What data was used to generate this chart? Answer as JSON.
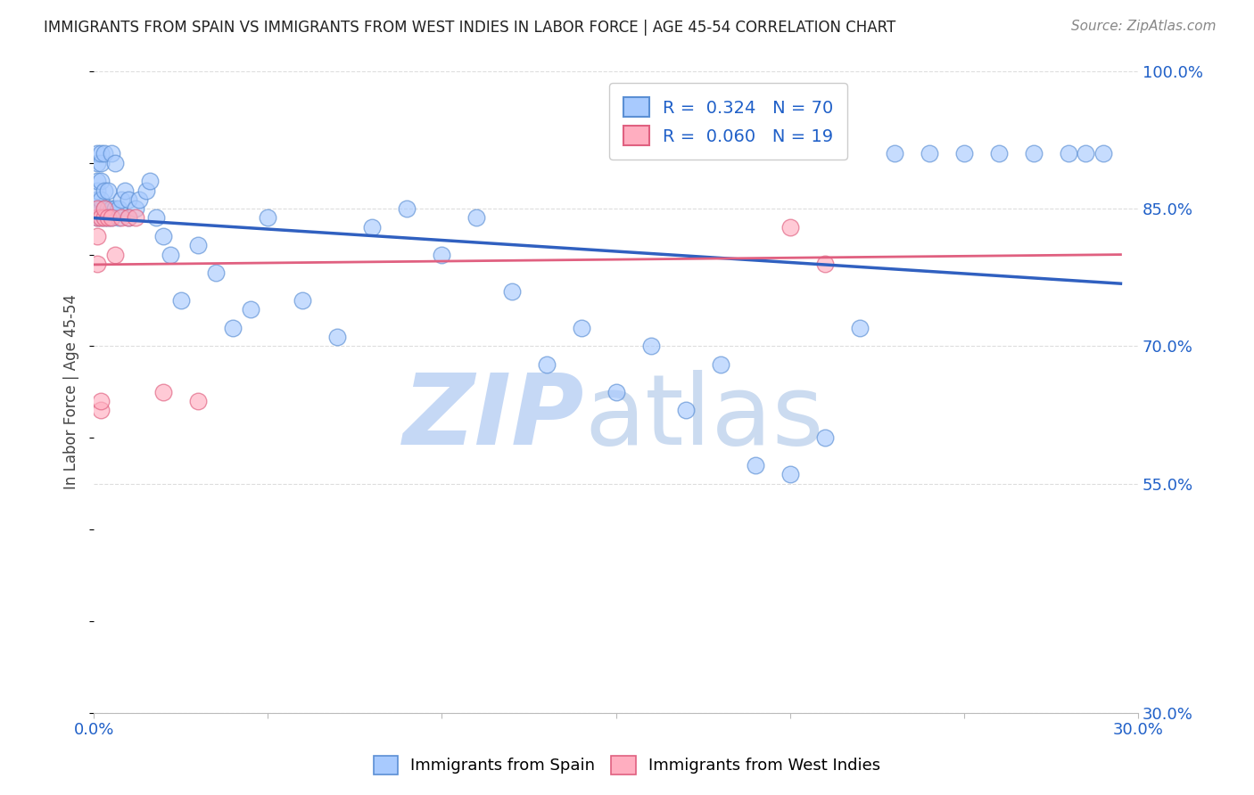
{
  "title": "IMMIGRANTS FROM SPAIN VS IMMIGRANTS FROM WEST INDIES IN LABOR FORCE | AGE 45-54 CORRELATION CHART",
  "source": "Source: ZipAtlas.com",
  "ylabel": "In Labor Force | Age 45-54",
  "xlim": [
    0.0,
    0.3
  ],
  "ylim": [
    0.3,
    1.0
  ],
  "xtick_labels": [
    "0.0%",
    "",
    "",
    "",
    "",
    "",
    "30.0%"
  ],
  "ytick_labels_right": [
    "100.0%",
    "85.0%",
    "70.0%",
    "55.0%",
    "30.0%"
  ],
  "ytick_positions_right": [
    1.0,
    0.85,
    0.7,
    0.55,
    0.3
  ],
  "r_spain": 0.324,
  "n_spain": 70,
  "r_westindies": 0.06,
  "n_westindies": 19,
  "blue_fill": "#A8CAFE",
  "pink_fill": "#FFAEC0",
  "blue_edge": "#5B8FD4",
  "pink_edge": "#E06080",
  "blue_line_color": "#3060C0",
  "pink_line_color": "#E06080",
  "legend_color": "#2060C8",
  "background_color": "#FFFFFF",
  "grid_color": "#DDDDDD",
  "title_color": "#222222",
  "source_color": "#888888",
  "axis_color": "#2060C8",
  "ylabel_color": "#444444",
  "spain_x": [
    0.001,
    0.001,
    0.001,
    0.001,
    0.001,
    0.001,
    0.001,
    0.001,
    0.002,
    0.002,
    0.002,
    0.002,
    0.002,
    0.002,
    0.003,
    0.003,
    0.003,
    0.003,
    0.004,
    0.004,
    0.004,
    0.005,
    0.005,
    0.005,
    0.006,
    0.006,
    0.007,
    0.007,
    0.008,
    0.009,
    0.01,
    0.01,
    0.012,
    0.013,
    0.015,
    0.016,
    0.018,
    0.02,
    0.022,
    0.025,
    0.03,
    0.035,
    0.04,
    0.045,
    0.05,
    0.06,
    0.07,
    0.08,
    0.09,
    0.1,
    0.11,
    0.12,
    0.13,
    0.14,
    0.15,
    0.16,
    0.17,
    0.18,
    0.19,
    0.2,
    0.21,
    0.22,
    0.23,
    0.24,
    0.25,
    0.26,
    0.27,
    0.28,
    0.285,
    0.29
  ],
  "spain_y": [
    0.84,
    0.85,
    0.85,
    0.86,
    0.87,
    0.88,
    0.9,
    0.91,
    0.84,
    0.85,
    0.86,
    0.88,
    0.9,
    0.91,
    0.84,
    0.85,
    0.87,
    0.91,
    0.84,
    0.85,
    0.87,
    0.84,
    0.85,
    0.91,
    0.85,
    0.9,
    0.84,
    0.85,
    0.86,
    0.87,
    0.84,
    0.86,
    0.85,
    0.86,
    0.87,
    0.88,
    0.84,
    0.82,
    0.8,
    0.75,
    0.81,
    0.78,
    0.72,
    0.74,
    0.84,
    0.75,
    0.71,
    0.83,
    0.85,
    0.8,
    0.84,
    0.76,
    0.68,
    0.72,
    0.65,
    0.7,
    0.63,
    0.68,
    0.57,
    0.56,
    0.6,
    0.72,
    0.91,
    0.91,
    0.91,
    0.91,
    0.91,
    0.91,
    0.91,
    0.91
  ],
  "wi_x": [
    0.001,
    0.001,
    0.001,
    0.001,
    0.002,
    0.002,
    0.002,
    0.003,
    0.003,
    0.004,
    0.005,
    0.006,
    0.008,
    0.01,
    0.012,
    0.02,
    0.03,
    0.2,
    0.21
  ],
  "wi_y": [
    0.79,
    0.82,
    0.84,
    0.85,
    0.63,
    0.64,
    0.84,
    0.84,
    0.85,
    0.84,
    0.84,
    0.8,
    0.84,
    0.84,
    0.84,
    0.65,
    0.64,
    0.83,
    0.79
  ]
}
